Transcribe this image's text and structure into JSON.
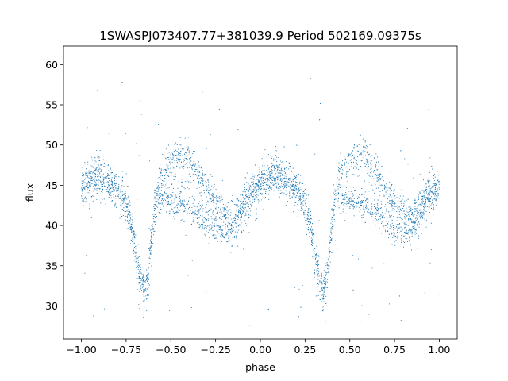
{
  "chart_data": {
    "type": "scatter",
    "title": "1SWASPJ073407.77+381039.9 Period 502169.09375s",
    "xlabel": "phase",
    "ylabel": "flux",
    "xlim": [
      -1.1,
      1.1
    ],
    "ylim": [
      25.9,
      62.3
    ],
    "xticks": [
      -1.0,
      -0.75,
      -0.5,
      -0.25,
      0.0,
      0.25,
      0.5,
      0.75,
      1.0
    ],
    "xtick_labels": [
      "−1.00",
      "−0.75",
      "−0.50",
      "−0.25",
      "0.00",
      "0.25",
      "0.50",
      "0.75",
      "1.00"
    ],
    "yticks": [
      30,
      35,
      40,
      45,
      50,
      55,
      60
    ],
    "ytick_labels": [
      "30",
      "35",
      "40",
      "45",
      "50",
      "55",
      "60"
    ],
    "grid": false,
    "marker_color": "#1f77b4",
    "series": [
      {
        "phase": [
          -1.0,
          -0.95,
          -0.9,
          -0.85,
          -0.8,
          -0.75,
          -0.72,
          -0.69,
          -0.67,
          -0.65,
          -0.63,
          -0.61,
          -0.59,
          -0.57,
          -0.55,
          -0.5,
          -0.45,
          -0.4,
          -0.35,
          -0.3,
          -0.25,
          -0.2,
          -0.15,
          -0.1,
          -0.05,
          0.0,
          0.05,
          0.1,
          0.15,
          0.2,
          0.25,
          0.28,
          0.31,
          0.33,
          0.35,
          0.37,
          0.39,
          0.41,
          0.43,
          0.45,
          0.5,
          0.55,
          0.6,
          0.65,
          0.7,
          0.75,
          0.8,
          0.85,
          0.9,
          0.95,
          1.0
        ],
        "flux": [
          44.3,
          45.5,
          45.8,
          45.0,
          44.0,
          42.5,
          39.5,
          35.5,
          33.0,
          31.5,
          33.0,
          37.5,
          41.5,
          43.5,
          44.0,
          45.0,
          46.0,
          46.5,
          45.0,
          43.5,
          42.5,
          41.0,
          40.5,
          42.0,
          43.5,
          44.3,
          45.5,
          45.8,
          45.0,
          44.0,
          42.5,
          39.5,
          35.5,
          33.0,
          31.5,
          33.0,
          37.5,
          41.5,
          43.5,
          44.0,
          45.0,
          46.0,
          46.5,
          45.0,
          43.5,
          42.5,
          41.0,
          40.5,
          42.0,
          43.5,
          44.3
        ],
        "lower_branch": [
          44.3,
          45.3,
          45.5,
          44.7,
          43.8,
          42.5,
          39.5,
          35.5,
          33.0,
          31.5,
          33.0,
          37.5,
          41.5,
          43.0,
          43.5,
          43.0,
          42.5,
          42.0,
          41.5,
          40.5,
          39.5,
          39.0,
          39.5,
          41.5,
          43.5,
          44.3,
          45.3,
          45.5,
          44.7,
          43.8,
          42.5,
          39.5,
          35.5,
          33.0,
          31.5,
          33.0,
          37.5,
          41.5,
          43.0,
          43.5,
          43.0,
          42.5,
          42.0,
          41.5,
          40.5,
          39.5,
          39.0,
          39.5,
          41.5,
          43.5,
          44.3
        ],
        "upper_branch": [
          45.0,
          46.5,
          47.0,
          46.0,
          45.0,
          43.5,
          40.5,
          36.5,
          34.0,
          32.5,
          34.0,
          38.5,
          43.0,
          45.5,
          46.5,
          48.0,
          49.0,
          48.5,
          46.5,
          44.5,
          43.0,
          41.5,
          41.5,
          43.0,
          45.0,
          45.5,
          46.8,
          47.0,
          46.0,
          45.0,
          43.5,
          40.5,
          36.5,
          34.0,
          32.5,
          34.0,
          38.5,
          43.0,
          45.5,
          46.5,
          48.0,
          49.0,
          48.5,
          46.5,
          44.5,
          43.0,
          41.5,
          41.5,
          43.0,
          45.0,
          45.0
        ]
      }
    ]
  }
}
